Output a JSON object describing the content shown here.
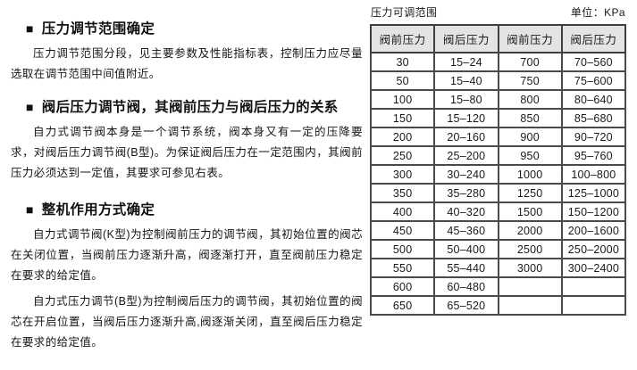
{
  "page": {
    "bullet": "■",
    "sections": [
      {
        "heading": "压力调节范围确定",
        "paragraphs": [
          "压力调节范围分段，见主要参数及性能指标表，控制压力应尽量选取在调节范围中间值附近。"
        ]
      },
      {
        "heading": "阀后压力调节阀，其阀前压力与阀后压力的关系",
        "paragraphs": [
          "自力式调节阀本身是一个调节系统，阀本身又有一定的压降要求，对阀后压力调节阀(B型)。为保证阀后压力在一定范围内，其阀前压力必须达到一定值，其要求可参见右表。"
        ]
      },
      {
        "heading": "整机作用方式确定",
        "paragraphs": [
          "自力式调节阀(K型)为控制阀前压力的调节阀，其初始位置的阀芯在关闭位置，当阀前压力逐渐升高，阀逐渐打开，直至阀前压力稳定在要求的给定值。",
          "自力式压力调节(B型)为控制阀后压力的调节阀，其初始位置的阀芯在开启位置，当阀后压力逐渐升高,阀逐渐关闭，直至阀后压力稳定在要求的给定值。"
        ]
      }
    ]
  },
  "table": {
    "title": "压力可调范围",
    "unit": "单位：KPa",
    "headers": [
      "阀前压力",
      "阀后压力",
      "阀前压力",
      "阀后压力"
    ],
    "rows": [
      [
        "30",
        "15–24",
        "700",
        "70–560"
      ],
      [
        "50",
        "15–40",
        "750",
        "75–600"
      ],
      [
        "100",
        "15–80",
        "800",
        "80–640"
      ],
      [
        "150",
        "15–120",
        "850",
        "85–680"
      ],
      [
        "200",
        "20–160",
        "900",
        "90–720"
      ],
      [
        "250",
        "25–200",
        "950",
        "95–760"
      ],
      [
        "300",
        "30–240",
        "1000",
        "100–800"
      ],
      [
        "350",
        "35–280",
        "1250",
        "125–1000"
      ],
      [
        "400",
        "40–320",
        "1500",
        "150–1200"
      ],
      [
        "450",
        "45–360",
        "2000",
        "200–1600"
      ],
      [
        "500",
        "50–400",
        "2500",
        "250–2000"
      ],
      [
        "550",
        "55–440",
        "3000",
        "300–2400"
      ],
      [
        "600",
        "60–480",
        "",
        ""
      ],
      [
        "650",
        "65–520",
        "",
        ""
      ]
    ],
    "colors": {
      "header_bg": "#e4e4e4",
      "inner_border": "#4a4a4a",
      "outer_border": "#1c1c1c",
      "text": "#1a1a1a"
    }
  }
}
